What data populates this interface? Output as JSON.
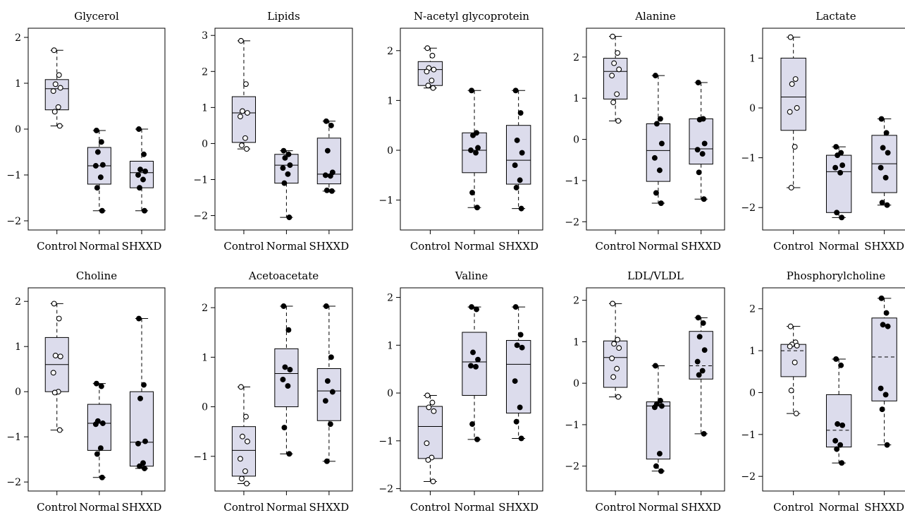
{
  "figure": {
    "background": "#ffffff",
    "box_fill": "#dcdcec",
    "box_stroke": "#000000",
    "control_marker": "open-circle",
    "treated_marker": "filled-circle"
  },
  "chart_data": [
    {
      "type": "box",
      "title": "Glycerol",
      "categories": [
        "Control",
        "Normal",
        "SHXXD"
      ],
      "ylim": [
        -2.2,
        2.2
      ],
      "yticks": [
        -2,
        -1,
        0,
        1,
        2
      ],
      "ytick_labels": [
        "−2",
        "−1",
        "0",
        "1",
        "2"
      ],
      "groups": [
        {
          "category": "Control",
          "min": 0.07,
          "q1": 0.42,
          "median": 0.88,
          "q3": 1.08,
          "max": 1.72,
          "median_style": "solid",
          "points": [
            1.72,
            1.18,
            0.98,
            0.9,
            0.83,
            0.48,
            0.38,
            0.07
          ]
        },
        {
          "category": "Normal",
          "min": -1.78,
          "q1": -1.2,
          "median": -0.8,
          "q3": -0.4,
          "max": -0.03,
          "median_style": "solid",
          "points": [
            -0.03,
            -0.28,
            -0.5,
            -0.78,
            -0.8,
            -1.05,
            -1.28,
            -1.78
          ]
        },
        {
          "category": "SHXXD",
          "min": -1.78,
          "q1": -1.28,
          "median": -0.95,
          "q3": -0.7,
          "max": 0.0,
          "median_style": "solid",
          "points": [
            0.0,
            -0.55,
            -0.88,
            -0.92,
            -1.0,
            -1.1,
            -1.28,
            -1.78
          ]
        }
      ]
    },
    {
      "type": "box",
      "title": "Lipids",
      "categories": [
        "Control",
        "Normal",
        "SHXXD"
      ],
      "ylim": [
        -2.4,
        3.2
      ],
      "yticks": [
        -2,
        -1,
        0,
        1,
        2,
        3
      ],
      "ytick_labels": [
        "−2",
        "−1",
        "0",
        "1",
        "2",
        "3"
      ],
      "groups": [
        {
          "category": "Control",
          "min": -0.15,
          "q1": 0.03,
          "median": 0.85,
          "q3": 1.3,
          "max": 2.85,
          "median_style": "solid",
          "points": [
            2.85,
            1.65,
            0.9,
            0.85,
            0.75,
            0.15,
            -0.05,
            -0.15
          ]
        },
        {
          "category": "Normal",
          "min": -2.05,
          "q1": -1.1,
          "median": -0.6,
          "q3": -0.3,
          "max": -0.2,
          "median_style": "solid",
          "points": [
            -0.2,
            -0.3,
            -0.4,
            -0.6,
            -0.68,
            -0.85,
            -1.1,
            -2.05
          ]
        },
        {
          "category": "SHXXD",
          "min": -1.32,
          "q1": -1.12,
          "median": -0.85,
          "q3": 0.15,
          "max": 0.62,
          "median_style": "solid",
          "points": [
            0.62,
            0.5,
            -0.2,
            -0.8,
            -0.88,
            -0.9,
            -1.3,
            -1.32
          ]
        }
      ]
    },
    {
      "type": "box",
      "title": "N-acetyl glycoprotein",
      "categories": [
        "Control",
        "Normal",
        "SHXXD"
      ],
      "ylim": [
        -1.6,
        2.45
      ],
      "yticks": [
        -1,
        0,
        1,
        2
      ],
      "ytick_labels": [
        "−1",
        "0",
        "1",
        "2"
      ],
      "groups": [
        {
          "category": "Control",
          "min": 1.25,
          "q1": 1.3,
          "median": 1.62,
          "q3": 1.78,
          "max": 2.05,
          "median_style": "solid",
          "points": [
            2.05,
            1.9,
            1.65,
            1.62,
            1.58,
            1.4,
            1.3,
            1.25
          ]
        },
        {
          "category": "Normal",
          "min": -1.15,
          "q1": -0.45,
          "median": 0.0,
          "q3": 0.35,
          "max": 1.2,
          "median_style": "solid",
          "points": [
            1.2,
            0.35,
            0.3,
            0.05,
            0.0,
            -0.05,
            -0.85,
            -1.15
          ]
        },
        {
          "category": "SHXXD",
          "min": -1.17,
          "q1": -0.68,
          "median": -0.2,
          "q3": 0.5,
          "max": 1.2,
          "median_style": "solid",
          "points": [
            1.2,
            0.75,
            0.2,
            -0.05,
            -0.3,
            -0.6,
            -0.75,
            -1.17
          ]
        }
      ]
    },
    {
      "type": "box",
      "title": "Alanine",
      "categories": [
        "Control",
        "Normal",
        "SHXXD"
      ],
      "ylim": [
        -2.2,
        2.7
      ],
      "yticks": [
        -2,
        -1,
        0,
        1,
        2
      ],
      "ytick_labels": [
        "−2",
        "−1",
        "0",
        "1",
        "2"
      ],
      "groups": [
        {
          "category": "Control",
          "min": 0.45,
          "q1": 0.98,
          "median": 1.65,
          "q3": 1.97,
          "max": 2.5,
          "median_style": "solid",
          "points": [
            2.5,
            2.1,
            1.85,
            1.7,
            1.55,
            1.1,
            0.9,
            0.45
          ]
        },
        {
          "category": "Normal",
          "min": -1.55,
          "q1": -1.02,
          "median": -0.27,
          "q3": 0.38,
          "max": 1.55,
          "median_style": "solid",
          "points": [
            1.55,
            0.5,
            0.38,
            -0.1,
            -0.45,
            -0.75,
            -1.3,
            -1.55
          ]
        },
        {
          "category": "SHXXD",
          "min": -1.45,
          "q1": -0.6,
          "median": -0.23,
          "q3": 0.5,
          "max": 1.38,
          "median_style": "solid",
          "points": [
            1.38,
            0.5,
            0.48,
            -0.1,
            -0.25,
            -0.35,
            -0.8,
            -1.45
          ]
        }
      ]
    },
    {
      "type": "box",
      "title": "Lactate",
      "categories": [
        "Control",
        "Normal",
        "SHXXD"
      ],
      "ylim": [
        -2.45,
        1.6
      ],
      "yticks": [
        -2,
        -1,
        0,
        1
      ],
      "ytick_labels": [
        "−2",
        "−1",
        "0",
        "1"
      ],
      "groups": [
        {
          "category": "Control",
          "min": -1.6,
          "q1": -0.45,
          "median": 0.22,
          "q3": 1.0,
          "max": 1.42,
          "median_style": "solid",
          "points": [
            1.42,
            0.58,
            0.48,
            0.0,
            -0.08,
            -0.78,
            -1.6
          ]
        },
        {
          "category": "Normal",
          "min": -2.2,
          "q1": -2.1,
          "median": -1.28,
          "q3": -0.95,
          "max": -0.78,
          "median_style": "solid",
          "points": [
            -0.78,
            -0.9,
            -0.95,
            -1.15,
            -1.2,
            -1.3,
            -2.1,
            -2.2
          ]
        },
        {
          "category": "SHXXD",
          "min": -1.95,
          "q1": -1.7,
          "median": -1.12,
          "q3": -0.55,
          "max": -0.22,
          "median_style": "solid",
          "points": [
            -0.22,
            -0.5,
            -0.8,
            -0.9,
            -1.2,
            -1.4,
            -1.9,
            -1.95
          ]
        }
      ]
    },
    {
      "type": "box",
      "title": "Choline",
      "categories": [
        "Control",
        "Normal",
        "SHXXD"
      ],
      "ylim": [
        -2.2,
        2.3
      ],
      "yticks": [
        -2,
        -1,
        0,
        1,
        2
      ],
      "ytick_labels": [
        "−2",
        "−1",
        "0",
        "1",
        "2"
      ],
      "groups": [
        {
          "category": "Control",
          "min": -0.85,
          "q1": 0.0,
          "median": 0.6,
          "q3": 1.2,
          "max": 1.95,
          "median_style": "solid",
          "points": [
            1.95,
            1.62,
            0.8,
            0.78,
            0.42,
            0.0,
            -0.02,
            -0.85
          ]
        },
        {
          "category": "Normal",
          "min": -1.9,
          "q1": -1.3,
          "median": -0.7,
          "q3": -0.28,
          "max": 0.18,
          "median_style": "solid",
          "points": [
            0.18,
            0.12,
            -0.65,
            -0.7,
            -0.72,
            -1.25,
            -1.38,
            -1.9
          ]
        },
        {
          "category": "SHXXD",
          "min": -1.7,
          "q1": -1.65,
          "median": -1.12,
          "q3": 0.0,
          "max": 1.62,
          "median_style": "solid",
          "points": [
            1.62,
            0.15,
            -0.15,
            -1.1,
            -1.15,
            -1.58,
            -1.65,
            -1.7
          ]
        }
      ]
    },
    {
      "type": "box",
      "title": "Acetoacetate",
      "categories": [
        "Control",
        "Normal",
        "SHXXD"
      ],
      "ylim": [
        -1.7,
        2.4
      ],
      "yticks": [
        -1,
        0,
        1,
        2
      ],
      "ytick_labels": [
        "−1",
        "0",
        "1",
        "2"
      ],
      "groups": [
        {
          "category": "Control",
          "min": -1.55,
          "q1": -1.4,
          "median": -0.88,
          "q3": -0.4,
          "max": 0.4,
          "median_style": "solid",
          "points": [
            0.4,
            -0.2,
            -0.6,
            -0.7,
            -1.05,
            -1.3,
            -1.45,
            -1.55
          ]
        },
        {
          "category": "Normal",
          "min": -0.95,
          "q1": 0.0,
          "median": 0.67,
          "q3": 1.17,
          "max": 2.03,
          "median_style": "solid",
          "points": [
            2.03,
            1.55,
            0.8,
            0.75,
            0.55,
            0.42,
            -0.42,
            -0.95
          ]
        },
        {
          "category": "SHXXD",
          "min": -1.1,
          "q1": -0.28,
          "median": 0.32,
          "q3": 0.77,
          "max": 2.03,
          "median_style": "solid",
          "points": [
            2.03,
            1.0,
            0.52,
            0.3,
            0.12,
            -0.35,
            -1.1
          ]
        }
      ]
    },
    {
      "type": "box",
      "title": "Valine",
      "categories": [
        "Control",
        "Normal",
        "SHXXD"
      ],
      "ylim": [
        -2.05,
        2.2
      ],
      "yticks": [
        -2,
        -1,
        0,
        1,
        2
      ],
      "ytick_labels": [
        "−2",
        "−1",
        "0",
        "1",
        "2"
      ],
      "groups": [
        {
          "category": "Control",
          "min": -1.85,
          "q1": -1.37,
          "median": -0.7,
          "q3": -0.28,
          "max": -0.05,
          "median_style": "solid",
          "points": [
            -0.05,
            -0.2,
            -0.3,
            -0.38,
            -1.05,
            -1.35,
            -1.4,
            -1.85
          ]
        },
        {
          "category": "Normal",
          "min": -0.97,
          "q1": -0.05,
          "median": 0.65,
          "q3": 1.27,
          "max": 1.8,
          "median_style": "solid",
          "points": [
            1.8,
            1.75,
            0.85,
            0.7,
            0.57,
            0.55,
            -0.65,
            -0.97
          ]
        },
        {
          "category": "SHXXD",
          "min": -0.95,
          "q1": -0.42,
          "median": 0.6,
          "q3": 1.1,
          "max": 1.8,
          "median_style": "solid",
          "points": [
            1.8,
            1.22,
            1.0,
            0.95,
            0.25,
            -0.3,
            -0.6,
            -0.95
          ]
        }
      ]
    },
    {
      "type": "box",
      "title": "LDL/VLDL",
      "categories": [
        "Control",
        "Normal",
        "SHXXD"
      ],
      "ylim": [
        -2.6,
        2.3
      ],
      "yticks": [
        -2,
        -1,
        0,
        1,
        2
      ],
      "ytick_labels": [
        "−2",
        "−1",
        "0",
        "1",
        "2"
      ],
      "groups": [
        {
          "category": "Control",
          "min": -0.33,
          "q1": -0.1,
          "median": 0.62,
          "q3": 1.02,
          "max": 1.92,
          "median_style": "solid",
          "points": [
            1.92,
            1.05,
            0.95,
            0.85,
            0.6,
            0.35,
            0.15,
            -0.33
          ]
        },
        {
          "category": "Normal",
          "min": -2.12,
          "q1": -1.83,
          "median": -0.55,
          "q3": -0.45,
          "max": 0.42,
          "median_style": "solid",
          "points": [
            0.42,
            -0.42,
            -0.5,
            -0.55,
            -0.58,
            -1.7,
            -2.0,
            -2.12
          ]
        },
        {
          "category": "SHXXD",
          "min": -1.22,
          "q1": 0.1,
          "median": 0.42,
          "q3": 1.25,
          "max": 1.58,
          "median_style": "dashed",
          "points": [
            1.58,
            1.45,
            1.12,
            0.8,
            0.52,
            0.3,
            0.2,
            -1.22
          ]
        }
      ]
    },
    {
      "type": "box",
      "title": "Phosphorylcholine",
      "categories": [
        "Control",
        "Normal",
        "SHXXD"
      ],
      "ylim": [
        -2.35,
        2.5
      ],
      "yticks": [
        -2,
        -1,
        0,
        1,
        2
      ],
      "ytick_labels": [
        "−2",
        "−1",
        "0",
        "1",
        "2"
      ],
      "groups": [
        {
          "category": "Control",
          "min": -0.5,
          "q1": 0.38,
          "median": 1.0,
          "q3": 1.15,
          "max": 1.58,
          "median_style": "dashed",
          "points": [
            1.58,
            1.2,
            1.15,
            1.12,
            1.1,
            0.72,
            0.05,
            -0.5
          ]
        },
        {
          "category": "Normal",
          "min": -1.68,
          "q1": -1.3,
          "median": -0.9,
          "q3": -0.05,
          "max": 0.8,
          "median_style": "dashed",
          "points": [
            0.8,
            0.65,
            -0.75,
            -0.78,
            -1.15,
            -1.25,
            -1.35,
            -1.68
          ]
        },
        {
          "category": "SHXXD",
          "min": -1.25,
          "q1": -0.2,
          "median": 0.85,
          "q3": 1.78,
          "max": 2.25,
          "median_style": "dashed",
          "points": [
            2.25,
            1.9,
            1.62,
            1.58,
            0.1,
            -0.05,
            -0.4,
            -1.25
          ]
        }
      ]
    }
  ]
}
